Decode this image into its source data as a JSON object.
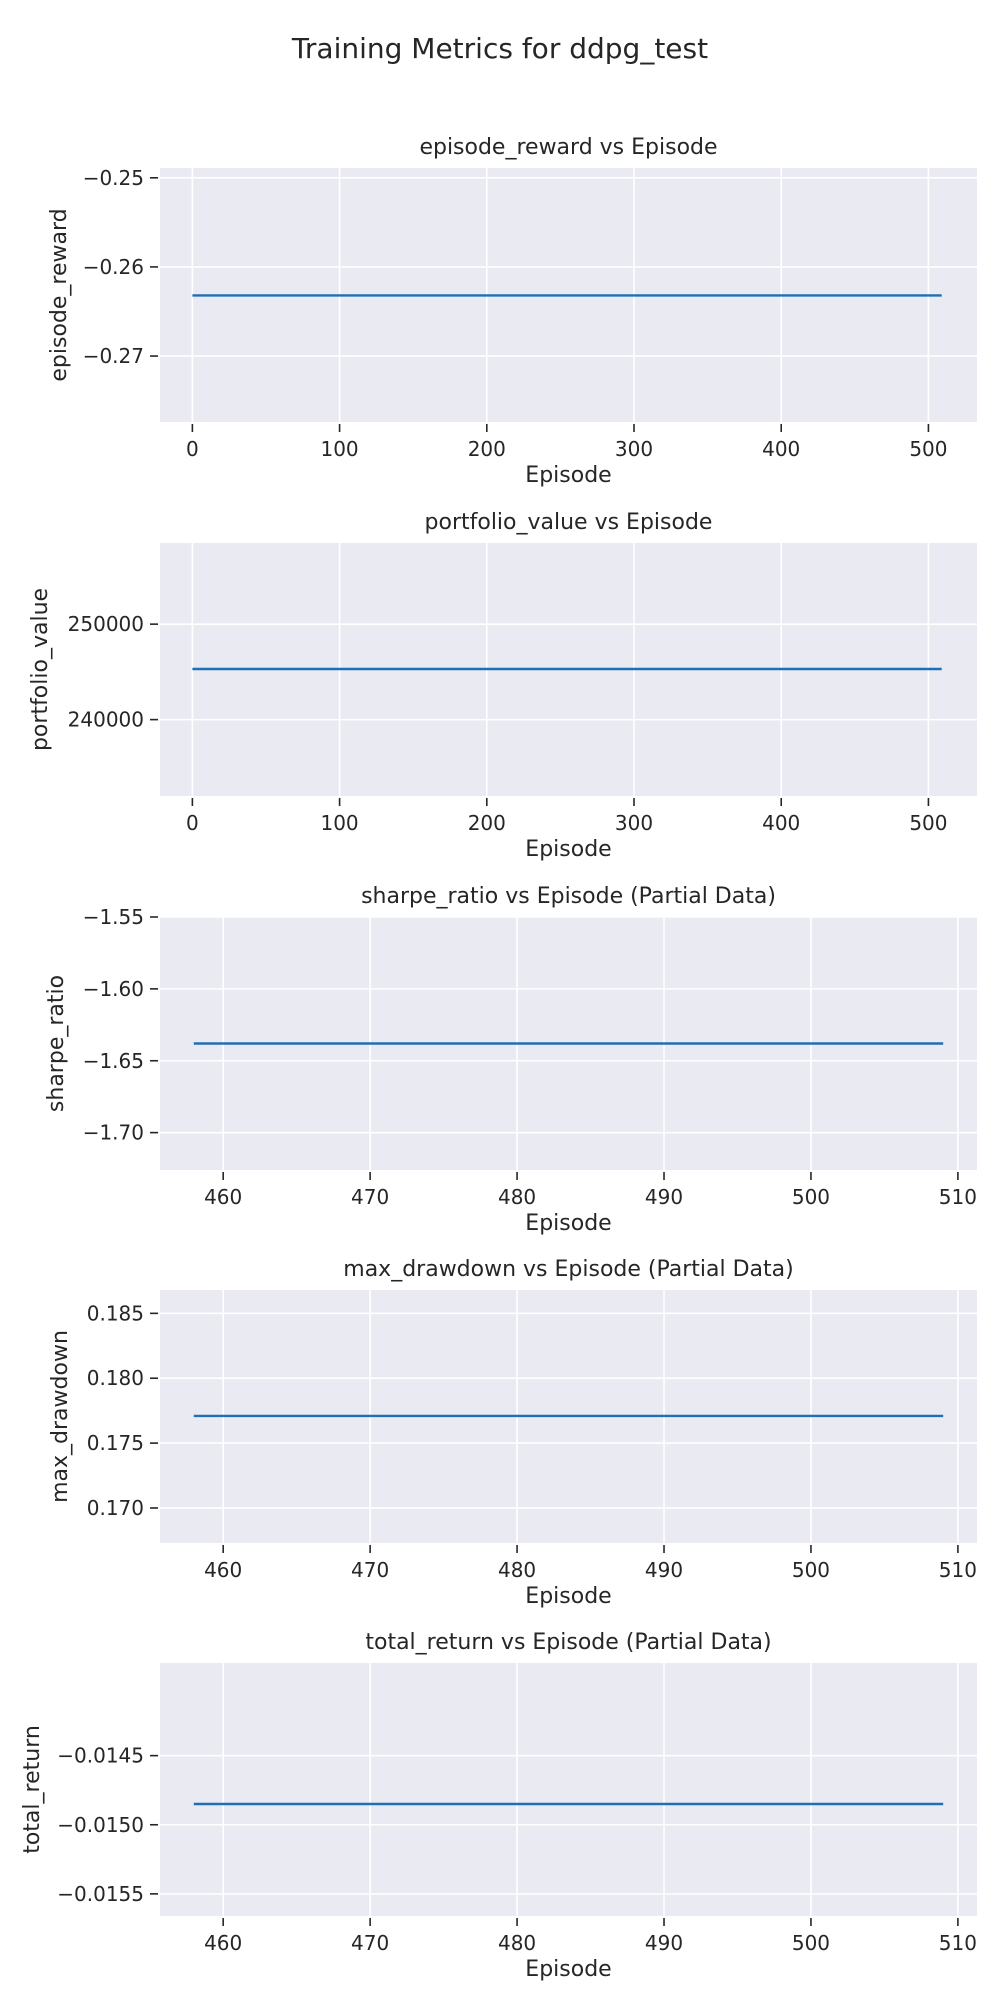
{
  "figure": {
    "title": "Training Metrics for ddpg_test"
  },
  "colors": {
    "axes_background": "#eaeaf2",
    "grid": "#ffffff",
    "line": "#1f6fb5",
    "text": "#262626",
    "tick": "#262626"
  },
  "chart_data": [
    {
      "type": "line",
      "title": "episode_reward vs Episode",
      "xlabel": "Episode",
      "ylabel": "episode_reward",
      "x": [
        0,
        509
      ],
      "series": [
        {
          "values": [
            -0.2632,
            -0.2632
          ]
        }
      ],
      "xlim": [
        -22,
        533
      ],
      "ylim": [
        -0.2774,
        -0.2489
      ],
      "xticks": [
        0,
        100,
        200,
        300,
        400,
        500
      ],
      "xtick_labels": [
        "0",
        "100",
        "200",
        "300",
        "400",
        "500"
      ],
      "yticks": [
        -0.25,
        -0.26,
        -0.27
      ],
      "ytick_labels": [
        "−0.25",
        "−0.26",
        "−0.27"
      ],
      "grid": true
    },
    {
      "type": "line",
      "title": "portfolio_value vs Episode",
      "xlabel": "Episode",
      "ylabel": "portfolio_value",
      "x": [
        0,
        509
      ],
      "series": [
        {
          "values": [
            245300,
            245300
          ]
        }
      ],
      "xlim": [
        -22,
        533
      ],
      "ylim": [
        232000,
        258500
      ],
      "xticks": [
        0,
        100,
        200,
        300,
        400,
        500
      ],
      "xtick_labels": [
        "0",
        "100",
        "200",
        "300",
        "400",
        "500"
      ],
      "yticks": [
        250000,
        240000
      ],
      "ytick_labels": [
        "250000",
        "240000"
      ],
      "grid": true
    },
    {
      "type": "line",
      "title": "sharpe_ratio vs Episode (Partial Data)",
      "xlabel": "Episode",
      "ylabel": "sharpe_ratio",
      "x": [
        458,
        509
      ],
      "series": [
        {
          "values": [
            -1.638,
            -1.638
          ]
        }
      ],
      "xlim": [
        455.7,
        511.3
      ],
      "ylim": [
        -1.726,
        -1.55
      ],
      "xticks": [
        460,
        470,
        480,
        490,
        500,
        510
      ],
      "xtick_labels": [
        "460",
        "470",
        "480",
        "490",
        "500",
        "510"
      ],
      "yticks": [
        -1.55,
        -1.6,
        -1.65,
        -1.7
      ],
      "ytick_labels": [
        "−1.55",
        "−1.60",
        "−1.65",
        "−1.70"
      ],
      "grid": true
    },
    {
      "type": "line",
      "title": "max_drawdown vs Episode (Partial Data)",
      "xlabel": "Episode",
      "ylabel": "max_drawdown",
      "x": [
        458,
        509
      ],
      "series": [
        {
          "values": [
            0.1771,
            0.1771
          ]
        }
      ],
      "xlim": [
        455.7,
        511.3
      ],
      "ylim": [
        0.1673,
        0.1868
      ],
      "xticks": [
        460,
        470,
        480,
        490,
        500,
        510
      ],
      "xtick_labels": [
        "460",
        "470",
        "480",
        "490",
        "500",
        "510"
      ],
      "yticks": [
        0.185,
        0.18,
        0.175,
        0.17
      ],
      "ytick_labels": [
        "0.185",
        "0.180",
        "0.175",
        "0.170"
      ],
      "grid": true
    },
    {
      "type": "line",
      "title": "total_return vs Episode (Partial Data)",
      "xlabel": "Episode",
      "ylabel": "total_return",
      "x": [
        458,
        509
      ],
      "series": [
        {
          "values": [
            -0.01485,
            -0.01485
          ]
        }
      ],
      "xlim": [
        455.7,
        511.3
      ],
      "ylim": [
        -0.01566,
        -0.01383
      ],
      "xticks": [
        460,
        470,
        480,
        490,
        500,
        510
      ],
      "xtick_labels": [
        "460",
        "470",
        "480",
        "490",
        "500",
        "510"
      ],
      "yticks": [
        -0.0145,
        -0.015,
        -0.0155
      ],
      "ytick_labels": [
        "−0.0145",
        "−0.0150",
        "−0.0155"
      ],
      "grid": true
    }
  ]
}
